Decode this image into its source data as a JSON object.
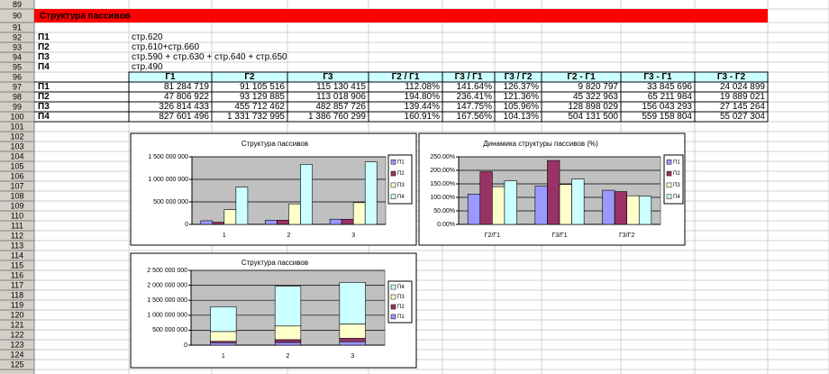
{
  "sheet": {
    "row_numbers": [
      89,
      90,
      91,
      92,
      93,
      94,
      95,
      96,
      97,
      98,
      99,
      100,
      101,
      102,
      103,
      104,
      105,
      106,
      107,
      108,
      109,
      110,
      111,
      112,
      113,
      114,
      115,
      116,
      117,
      118,
      119,
      120,
      121,
      122,
      123,
      124,
      125
    ],
    "title": "Структура пассивов",
    "formulas": [
      {
        "label": "П1",
        "formula": "стр.620"
      },
      {
        "label": "П2",
        "formula": "стр.610+стр.660"
      },
      {
        "label": "П3",
        "formula": "стр.590 + стр.630 + стр.640 + стр.650"
      },
      {
        "label": "П4",
        "formula": "стр.490"
      }
    ],
    "table": {
      "header": [
        "Г1",
        "Г2",
        "Г3",
        "Г2 / Г1",
        "Г3 / Г1",
        "Г3 / Г2",
        "Г2 - Г1",
        "Г3 - Г1",
        "Г3 - Г2"
      ],
      "rows": [
        {
          "label": "П1",
          "cells": [
            "81 284 719",
            "91 105 516",
            "115 130 415",
            "112.08%",
            "141.64%",
            "126.37%",
            "9 820 797",
            "33 845 696",
            "24 024 899"
          ]
        },
        {
          "label": "П2",
          "cells": [
            "47 806 922",
            "93 129 885",
            "113 018 906",
            "194.80%",
            "236.41%",
            "121.36%",
            "45 322 963",
            "65 211 984",
            "19 889 021"
          ]
        },
        {
          "label": "П3",
          "cells": [
            "326 814 433",
            "455 712 462",
            "482 857 726",
            "139.44%",
            "147.75%",
            "105.96%",
            "128 898 029",
            "156 043 293",
            "27 145 264"
          ]
        },
        {
          "label": "П4",
          "cells": [
            "827 601 496",
            "1 331 732 995",
            "1 386 760 299",
            "160.91%",
            "167.56%",
            "104.13%",
            "504 131 500",
            "559 158 804",
            "55 027 304"
          ]
        }
      ]
    }
  },
  "chart_data": [
    {
      "type": "bar",
      "title": "Структура пассивов",
      "categories": [
        "1",
        "2",
        "3"
      ],
      "series": [
        {
          "name": "П1",
          "color": "#9999ff",
          "values": [
            81284719,
            91105516,
            115130415
          ]
        },
        {
          "name": "П2",
          "color": "#993366",
          "values": [
            47806922,
            93129885,
            113018906
          ]
        },
        {
          "name": "П3",
          "color": "#ffffcc",
          "values": [
            326814433,
            455712462,
            482857726
          ]
        },
        {
          "name": "П4",
          "color": "#ccffff",
          "values": [
            827601496,
            1331732995,
            1386760299
          ]
        }
      ],
      "ylim": [
        0,
        1500000000
      ],
      "yticks": [
        0,
        {
          "value": 500000000,
          "label": "500 000 000"
        },
        {
          "value": 1000000000,
          "label": "1 000 000 000"
        },
        {
          "value": 1500000000,
          "label": "1 500 000 000"
        }
      ],
      "grid": true,
      "legend": "right"
    },
    {
      "type": "bar",
      "title": "Динамика структуры пассивов (%)",
      "categories": [
        "Г2/Г1",
        "Г3/Г1",
        "Г3/Г2"
      ],
      "series": [
        {
          "name": "П1",
          "color": "#9999ff",
          "values": [
            112.08,
            141.64,
            126.37
          ]
        },
        {
          "name": "П2",
          "color": "#993366",
          "values": [
            194.8,
            236.41,
            121.36
          ]
        },
        {
          "name": "П3",
          "color": "#ffffcc",
          "values": [
            139.44,
            147.75,
            105.96
          ]
        },
        {
          "name": "П4",
          "color": "#ccffff",
          "values": [
            160.91,
            167.56,
            104.13
          ]
        }
      ],
      "ylim": [
        0,
        250
      ],
      "yticks": [
        {
          "value": 0,
          "label": "0.00%"
        },
        {
          "value": 50,
          "label": "50.00%"
        },
        {
          "value": 100,
          "label": "100.00%"
        },
        {
          "value": 150,
          "label": "150.00%"
        },
        {
          "value": 200,
          "label": "200.00%"
        },
        {
          "value": 250,
          "label": "250.00%"
        }
      ],
      "grid": true,
      "legend": "right"
    },
    {
      "type": "stacked-bar",
      "title": "Структура пассивов",
      "categories": [
        "1",
        "2",
        "3"
      ],
      "series": [
        {
          "name": "П1",
          "color": "#9999ff",
          "values": [
            81284719,
            91105516,
            115130415
          ]
        },
        {
          "name": "П2",
          "color": "#993366",
          "values": [
            47806922,
            93129885,
            113018906
          ]
        },
        {
          "name": "П3",
          "color": "#ffffcc",
          "values": [
            326814433,
            455712462,
            482857726
          ]
        },
        {
          "name": "П4",
          "color": "#ccffff",
          "values": [
            827601496,
            1331732995,
            1386760299
          ]
        }
      ],
      "ylim": [
        0,
        2500000000
      ],
      "yticks": [
        0,
        {
          "value": 500000000,
          "label": "500 000 000"
        },
        {
          "value": 1000000000,
          "label": "1 000 000 000"
        },
        {
          "value": 1500000000,
          "label": "1 500 000 000"
        },
        {
          "value": 2000000000,
          "label": "2 000 000 000"
        },
        {
          "value": 2500000000,
          "label": "2 500 000 000"
        }
      ],
      "grid": true,
      "legend": "right"
    }
  ]
}
